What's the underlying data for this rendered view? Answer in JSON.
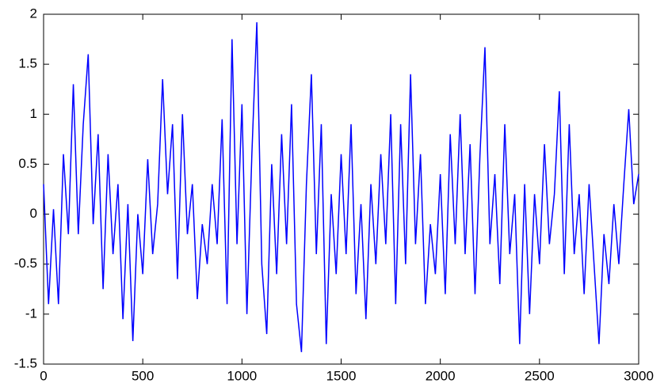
{
  "chart_data": {
    "type": "line",
    "color": "#0000ff",
    "grid": false,
    "x": [
      0,
      25,
      50,
      75,
      100,
      125,
      150,
      175,
      200,
      225,
      250,
      275,
      300,
      325,
      350,
      375,
      400,
      425,
      450,
      475,
      500,
      525,
      550,
      575,
      600,
      625,
      650,
      675,
      700,
      725,
      750,
      775,
      800,
      825,
      850,
      875,
      900,
      925,
      950,
      975,
      1000,
      1025,
      1050,
      1075,
      1100,
      1125,
      1150,
      1175,
      1200,
      1225,
      1250,
      1275,
      1300,
      1325,
      1350,
      1375,
      1400,
      1425,
      1450,
      1475,
      1500,
      1525,
      1550,
      1575,
      1600,
      1625,
      1650,
      1675,
      1700,
      1725,
      1750,
      1775,
      1800,
      1825,
      1850,
      1875,
      1900,
      1925,
      1950,
      1975,
      2000,
      2025,
      2050,
      2075,
      2100,
      2125,
      2150,
      2175,
      2200,
      2225,
      2250,
      2275,
      2300,
      2325,
      2350,
      2375,
      2400,
      2425,
      2450,
      2475,
      2500,
      2525,
      2550,
      2575,
      2600,
      2625,
      2650,
      2675,
      2700,
      2725,
      2750,
      2775,
      2800,
      2825,
      2850,
      2875,
      2900,
      2925,
      2950,
      2975,
      3000
    ],
    "values": [
      0.3,
      -0.9,
      0.05,
      -0.9,
      0.6,
      -0.2,
      1.3,
      -0.2,
      0.9,
      1.6,
      -0.1,
      0.8,
      -0.75,
      0.6,
      -0.4,
      0.3,
      -1.05,
      0.1,
      -1.27,
      0.0,
      -0.6,
      0.55,
      -0.4,
      0.1,
      1.35,
      0.2,
      0.9,
      -0.65,
      1.0,
      -0.2,
      0.3,
      -0.85,
      -0.1,
      -0.5,
      0.3,
      -0.3,
      0.95,
      -0.9,
      1.75,
      -0.3,
      1.1,
      -1.0,
      0.6,
      1.92,
      -0.5,
      -1.2,
      0.5,
      -0.6,
      0.8,
      -0.3,
      1.1,
      -0.9,
      -1.38,
      0.3,
      1.4,
      -0.4,
      0.9,
      -1.3,
      0.2,
      -0.6,
      0.6,
      -0.4,
      0.9,
      -0.8,
      0.1,
      -1.05,
      0.3,
      -0.5,
      0.6,
      -0.3,
      1.0,
      -0.9,
      0.9,
      -0.5,
      1.4,
      -0.3,
      0.6,
      -0.9,
      -0.1,
      -0.6,
      0.4,
      -0.8,
      0.8,
      -0.3,
      1.0,
      -0.4,
      0.7,
      -0.8,
      0.6,
      1.67,
      -0.3,
      0.4,
      -0.7,
      0.9,
      -0.4,
      0.2,
      -1.3,
      0.3,
      -1.0,
      0.2,
      -0.5,
      0.7,
      -0.3,
      0.2,
      1.23,
      -0.6,
      0.9,
      -0.4,
      0.2,
      -0.8,
      0.3,
      -0.5,
      -1.3,
      -0.2,
      -0.7,
      0.1,
      -0.5,
      0.3,
      1.05,
      0.1,
      0.4
    ],
    "xlim": [
      0,
      3000
    ],
    "xticks": [
      0,
      500,
      1000,
      1500,
      2000,
      2500,
      3000
    ],
    "ylim": [
      -1.5,
      2
    ],
    "yticks": [
      -1.5,
      -1,
      -0.5,
      0,
      0.5,
      1,
      1.5,
      2
    ]
  }
}
